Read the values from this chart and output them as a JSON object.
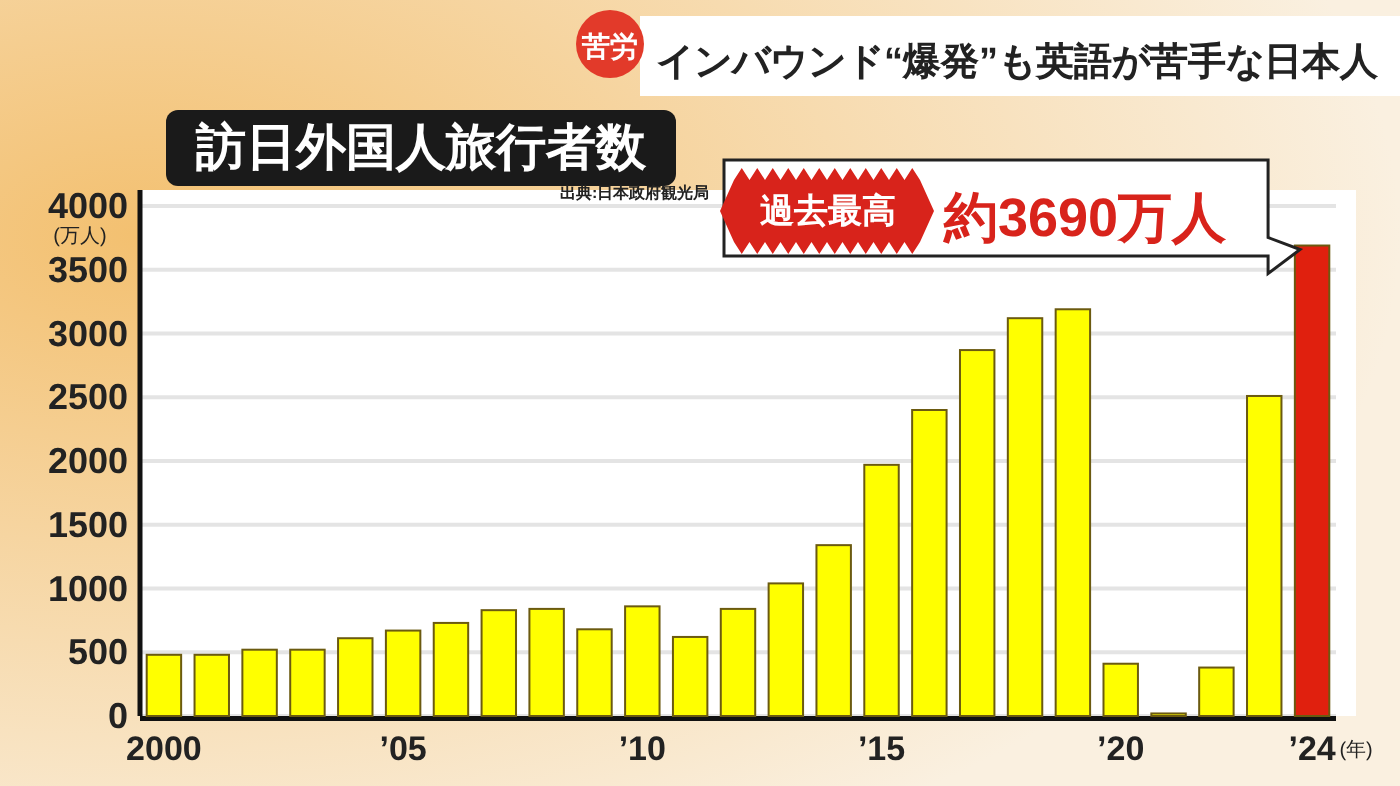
{
  "chart_data": {
    "type": "bar",
    "title": "訪日外国人旅行者数",
    "ylabel": "(万人)",
    "xlabel": "(年)",
    "categories": [
      "2000",
      null,
      null,
      null,
      null,
      "’05",
      null,
      null,
      null,
      null,
      "’10",
      null,
      null,
      null,
      null,
      "’15",
      null,
      null,
      null,
      null,
      "’20",
      null,
      null,
      null,
      "’24"
    ],
    "values": [
      480,
      480,
      520,
      520,
      610,
      670,
      730,
      830,
      840,
      680,
      860,
      620,
      840,
      1040,
      1340,
      1970,
      2400,
      2870,
      3120,
      3190,
      410,
      20,
      380,
      2510,
      3690
    ],
    "colors": [
      "#ffff00",
      "#ffff00",
      "#ffff00",
      "#ffff00",
      "#ffff00",
      "#ffff00",
      "#ffff00",
      "#ffff00",
      "#ffff00",
      "#ffff00",
      "#ffff00",
      "#ffff00",
      "#ffff00",
      "#ffff00",
      "#ffff00",
      "#ffff00",
      "#ffff00",
      "#ffff00",
      "#ffff00",
      "#ffff00",
      "#ffff00",
      "#ffff00",
      "#ffff00",
      "#ffff00",
      "#e0200e"
    ],
    "ylim": [
      0,
      4000
    ],
    "yticks": [
      0,
      500,
      1000,
      1500,
      2000,
      2500,
      3000,
      3500,
      4000
    ],
    "grid": "y",
    "annotations": [
      "苦労",
      "インバウンド“爆発”も英語が苦手な日本人",
      "出典:日本政府観光局",
      "過去最高",
      {
        "text": "約3690万人",
        "x": "’24",
        "y": 3690
      }
    ]
  }
}
